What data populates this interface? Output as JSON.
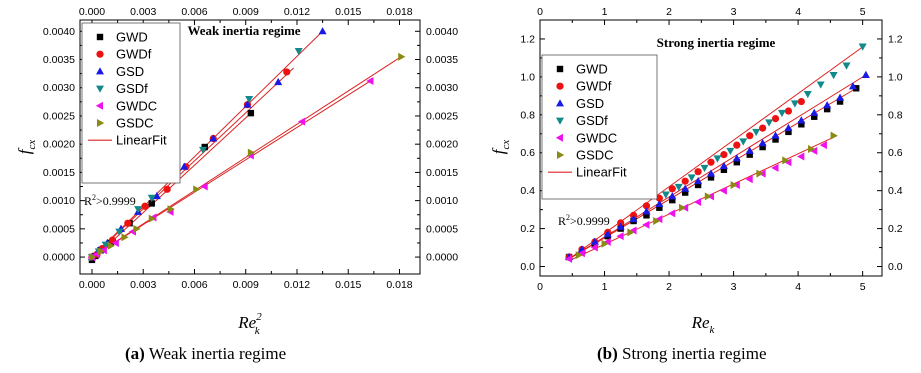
{
  "figure": {
    "caption_a": {
      "letter": "(a)",
      "text": " Weak inertia regime"
    },
    "caption_b": {
      "letter": "(b)",
      "text": " Strong inertia regime"
    }
  },
  "colors": {
    "GWD": "#000000",
    "GWDf": "#ee1111",
    "GSD": "#1a1ae6",
    "GSDf": "#138a8a",
    "GWDC": "#ee11ee",
    "GSDC": "#8b8b14",
    "LinearFit": "#dd2222"
  },
  "chart_data": [
    {
      "type": "scatter",
      "title": "Weak inertia regime",
      "xlabel": "Re",
      "xlabel_sub": "k",
      "xlabel_sup": "2",
      "ylabel": "f",
      "ylabel_sub": "cx",
      "xlim": [
        -0.0007,
        0.0192
      ],
      "ylim": [
        -0.0003,
        0.0042
      ],
      "xticks": [
        0.0,
        0.003,
        0.006,
        0.009,
        0.012,
        0.015,
        0.018
      ],
      "xtick_labels": [
        "0.000",
        "0.003",
        "0.006",
        "0.009",
        "0.012",
        "0.015",
        "0.018"
      ],
      "yticks": [
        0.0,
        0.0005,
        0.001,
        0.0015,
        0.002,
        0.0025,
        0.003,
        0.0035,
        0.004
      ],
      "ytick_labels": [
        "0.0000",
        "0.0005",
        "0.0010",
        "0.0015",
        "0.0020",
        "0.0025",
        "0.0030",
        "0.0035",
        "0.0040"
      ],
      "annotation": {
        "base": "R",
        "sup": "2",
        "rest": ">0.9999"
      },
      "legend_position": "top-left",
      "series": [
        {
          "name": "GWD",
          "marker": "square",
          "x": [
            0.0,
            0.0002,
            0.0005,
            0.0011,
            0.0022,
            0.0035,
            0.0066,
            0.0093
          ],
          "y": [
            -5e-05,
            2e-05,
            0.00012,
            0.00025,
            0.0006,
            0.00095,
            0.00195,
            0.00255
          ]
        },
        {
          "name": "GWDf",
          "marker": "circle",
          "x": [
            0.0,
            0.0003,
            0.0006,
            0.0012,
            0.0021,
            0.0031,
            0.0044,
            0.0055,
            0.0071,
            0.0091,
            0.0114
          ],
          "y": [
            0.0,
            5e-05,
            0.00015,
            0.0003,
            0.0006,
            0.0009,
            0.0012,
            0.0016,
            0.0021,
            0.0027,
            0.00328
          ]
        },
        {
          "name": "GSD",
          "marker": "triangle-up",
          "x": [
            0.0,
            0.0004,
            0.0009,
            0.0017,
            0.0027,
            0.0038,
            0.0054,
            0.0071,
            0.0091,
            0.0109,
            0.0135
          ],
          "y": [
            0.0,
            0.00012,
            0.00025,
            0.0005,
            0.0008,
            0.00108,
            0.0016,
            0.0021,
            0.0027,
            0.0031,
            0.004
          ]
        },
        {
          "name": "GSDf",
          "marker": "triangle-down",
          "x": [
            0.0,
            0.0004,
            0.0008,
            0.0016,
            0.0027,
            0.0035,
            0.0048,
            0.0065,
            0.0092,
            0.0121
          ],
          "y": [
            0.0,
            0.0001,
            0.00022,
            0.00045,
            0.00085,
            0.00105,
            0.00145,
            0.0019,
            0.0028,
            0.00365
          ]
        },
        {
          "name": "GWDC",
          "marker": "triangle-left",
          "x": [
            0.0,
            0.0003,
            0.0007,
            0.0014,
            0.0024,
            0.0036,
            0.0046,
            0.0066,
            0.0093,
            0.0123,
            0.0163
          ],
          "y": [
            0.0,
            5e-05,
            0.00012,
            0.00025,
            0.00045,
            0.0007,
            0.0008,
            0.00125,
            0.0018,
            0.0024,
            0.00312
          ]
        },
        {
          "name": "GSDC",
          "marker": "triangle-right",
          "x": [
            0.0,
            0.0005,
            0.0011,
            0.0019,
            0.0026,
            0.0035,
            0.0046,
            0.0061,
            0.0093,
            0.0181
          ],
          "y": [
            0.0,
            0.0001,
            0.0002,
            0.00035,
            0.0005,
            0.00068,
            0.00085,
            0.0012,
            0.00185,
            0.00355
          ]
        }
      ],
      "fits": [
        {
          "x": [
            0.0,
            0.0135
          ],
          "y": [
            0.0,
            0.004
          ]
        },
        {
          "x": [
            0.0,
            0.0118
          ],
          "y": [
            0.0,
            0.00335
          ]
        },
        {
          "x": [
            0.0,
            0.0093
          ],
          "y": [
            -5e-05,
            0.00255
          ]
        },
        {
          "x": [
            0.0,
            0.0181
          ],
          "y": [
            0.0,
            0.00355
          ]
        },
        {
          "x": [
            0.0,
            0.0163
          ],
          "y": [
            0.0,
            0.00312
          ]
        }
      ]
    },
    {
      "type": "scatter",
      "title": "Strong inertia regime",
      "xlabel": "Re",
      "xlabel_sub": "k",
      "ylabel": "f",
      "ylabel_sub": "cx",
      "xlim": [
        0,
        5.3
      ],
      "ylim": [
        -0.05,
        1.3
      ],
      "xticks": [
        0,
        1,
        2,
        3,
        4,
        5
      ],
      "xtick_labels": [
        "0",
        "1",
        "2",
        "3",
        "4",
        "5"
      ],
      "yticks": [
        0.0,
        0.2,
        0.4,
        0.6,
        0.8,
        1.0,
        1.2
      ],
      "ytick_labels": [
        "0.0",
        "0.2",
        "0.4",
        "0.6",
        "0.8",
        "1.0",
        "1.2"
      ],
      "annotation": {
        "base": "R",
        "sup": "2",
        "rest": ">0.9999"
      },
      "legend_position": "top-left",
      "series": [
        {
          "name": "GWD",
          "marker": "square",
          "x": [
            0.45,
            0.65,
            0.85,
            1.05,
            1.25,
            1.45,
            1.65,
            1.85,
            2.05,
            2.25,
            2.45,
            2.65,
            2.85,
            3.05,
            3.25,
            3.45,
            3.65,
            3.85,
            4.05,
            4.25,
            4.45,
            4.65,
            4.9
          ],
          "y": [
            0.05,
            0.08,
            0.12,
            0.16,
            0.2,
            0.24,
            0.27,
            0.31,
            0.35,
            0.39,
            0.43,
            0.47,
            0.51,
            0.55,
            0.59,
            0.63,
            0.67,
            0.71,
            0.75,
            0.79,
            0.83,
            0.87,
            0.94
          ]
        },
        {
          "name": "GWDf",
          "marker": "circle",
          "x": [
            0.45,
            0.65,
            0.85,
            1.05,
            1.25,
            1.45,
            1.65,
            1.85,
            2.05,
            2.25,
            2.45,
            2.65,
            2.85,
            3.05,
            3.25,
            3.45,
            3.65,
            3.85,
            4.05
          ],
          "y": [
            0.05,
            0.09,
            0.13,
            0.18,
            0.23,
            0.27,
            0.32,
            0.36,
            0.41,
            0.45,
            0.5,
            0.55,
            0.59,
            0.64,
            0.69,
            0.73,
            0.78,
            0.82,
            0.87
          ]
        },
        {
          "name": "GSD",
          "marker": "triangle-up",
          "x": [
            0.45,
            0.65,
            0.85,
            1.05,
            1.25,
            1.45,
            1.65,
            1.85,
            2.05,
            2.25,
            2.45,
            2.65,
            2.85,
            3.05,
            3.25,
            3.45,
            3.65,
            3.85,
            4.05,
            4.25,
            4.45,
            4.65,
            4.85,
            5.05
          ],
          "y": [
            0.05,
            0.09,
            0.13,
            0.17,
            0.21,
            0.25,
            0.29,
            0.33,
            0.37,
            0.41,
            0.45,
            0.49,
            0.53,
            0.57,
            0.61,
            0.65,
            0.69,
            0.73,
            0.77,
            0.81,
            0.85,
            0.89,
            0.95,
            1.01
          ]
        },
        {
          "name": "GSDf",
          "marker": "triangle-down",
          "x": [
            1.95,
            2.15,
            2.35,
            2.55,
            2.75,
            2.95,
            3.15,
            3.35,
            3.55,
            3.75,
            3.95,
            4.15,
            4.35,
            4.55,
            4.75,
            5.0
          ],
          "y": [
            0.38,
            0.42,
            0.47,
            0.52,
            0.57,
            0.61,
            0.66,
            0.71,
            0.76,
            0.81,
            0.86,
            0.91,
            0.96,
            1.01,
            1.06,
            1.16
          ]
        },
        {
          "name": "GWDC",
          "marker": "triangle-left",
          "x": [
            0.45,
            0.65,
            0.85,
            1.05,
            1.25,
            1.45,
            1.65,
            1.85,
            2.05,
            2.25,
            2.45,
            2.65,
            2.85,
            3.05,
            3.25,
            3.45,
            3.65,
            3.85,
            4.05,
            4.25,
            4.4
          ],
          "y": [
            0.04,
            0.07,
            0.1,
            0.13,
            0.16,
            0.19,
            0.22,
            0.25,
            0.28,
            0.31,
            0.34,
            0.37,
            0.4,
            0.43,
            0.46,
            0.49,
            0.52,
            0.55,
            0.58,
            0.61,
            0.64
          ]
        },
        {
          "name": "GSDC",
          "marker": "triangle-right",
          "x": [
            0.6,
            1.0,
            1.4,
            1.8,
            2.2,
            2.6,
            3.0,
            3.4,
            3.8,
            4.2,
            4.55
          ],
          "y": [
            0.06,
            0.12,
            0.18,
            0.24,
            0.31,
            0.37,
            0.43,
            0.49,
            0.56,
            0.62,
            0.69
          ]
        }
      ],
      "fits": [
        {
          "x": [
            0.45,
            5.05
          ],
          "y": [
            0.04,
            1.17
          ]
        },
        {
          "x": [
            0.45,
            5.05
          ],
          "y": [
            0.04,
            1.01
          ]
        },
        {
          "x": [
            0.45,
            4.95
          ],
          "y": [
            0.04,
            0.95
          ]
        },
        {
          "x": [
            0.45,
            4.6
          ],
          "y": [
            0.03,
            0.69
          ]
        }
      ]
    }
  ]
}
